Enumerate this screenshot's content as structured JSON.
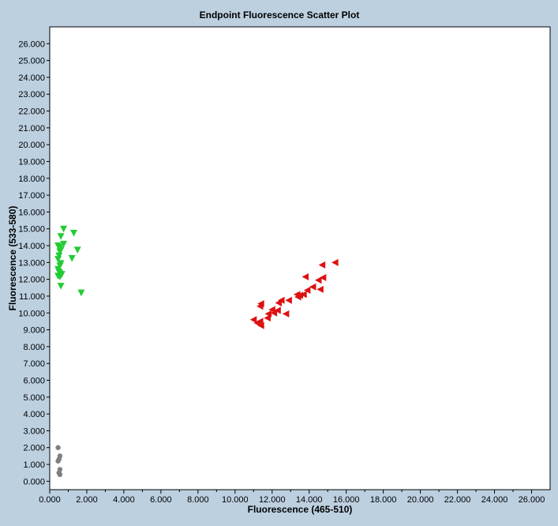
{
  "chart_data": {
    "type": "scatter",
    "title": "Endpoint Fluorescence Scatter Plot",
    "xlabel": "Fluorescence (465-510)",
    "ylabel": "Fluorescence (533-580)",
    "xlim": [
      0,
      27.0
    ],
    "ylim": [
      -0.5,
      27.0
    ],
    "grid": false,
    "x_ticks": [
      "0.000",
      "2.000",
      "4.000",
      "6.000",
      "8.000",
      "10.000",
      "12.000",
      "14.000",
      "16.000",
      "18.000",
      "20.000",
      "22.000",
      "24.000",
      "26.000"
    ],
    "y_ticks": [
      "0.000",
      "1.000",
      "2.000",
      "3.000",
      "4.000",
      "5.000",
      "6.000",
      "7.000",
      "8.000",
      "9.000",
      "10.000",
      "11.000",
      "12.000",
      "13.000",
      "14.000",
      "15.000",
      "16.000",
      "17.000",
      "18.000",
      "19.000",
      "20.000",
      "21.000",
      "22.000",
      "23.000",
      "24.000",
      "25.000",
      "26.000"
    ],
    "series": [
      {
        "marker": "triangle-down",
        "color": "#22cc33",
        "points": [
          [
            0.75,
            15.0
          ],
          [
            1.3,
            14.75
          ],
          [
            0.6,
            14.55
          ],
          [
            0.75,
            14.1
          ],
          [
            0.45,
            14.0
          ],
          [
            0.55,
            13.9
          ],
          [
            0.6,
            13.75
          ],
          [
            1.5,
            13.75
          ],
          [
            0.55,
            13.65
          ],
          [
            0.5,
            13.4
          ],
          [
            1.2,
            13.25
          ],
          [
            0.45,
            13.2
          ],
          [
            0.6,
            12.95
          ],
          [
            0.55,
            12.8
          ],
          [
            0.45,
            12.6
          ],
          [
            0.5,
            12.45
          ],
          [
            0.55,
            12.35
          ],
          [
            0.65,
            12.3
          ],
          [
            0.45,
            12.2
          ],
          [
            0.55,
            12.15
          ],
          [
            0.6,
            11.6
          ],
          [
            1.7,
            11.2
          ]
        ]
      },
      {
        "marker": "triangle-left",
        "color": "#dd1111",
        "points": [
          [
            15.4,
            13.0
          ],
          [
            14.7,
            12.85
          ],
          [
            14.75,
            12.1
          ],
          [
            14.5,
            11.95
          ],
          [
            13.8,
            12.15
          ],
          [
            14.6,
            11.4
          ],
          [
            14.2,
            11.55
          ],
          [
            13.9,
            11.35
          ],
          [
            13.7,
            11.1
          ],
          [
            13.5,
            11.05
          ],
          [
            13.35,
            11.1
          ],
          [
            13.4,
            10.95
          ],
          [
            12.9,
            10.75
          ],
          [
            12.5,
            10.75
          ],
          [
            12.35,
            10.6
          ],
          [
            11.4,
            10.55
          ],
          [
            11.35,
            10.4
          ],
          [
            12.3,
            10.15
          ],
          [
            12.0,
            10.2
          ],
          [
            12.1,
            10.0
          ],
          [
            11.8,
            9.95
          ],
          [
            12.75,
            9.95
          ],
          [
            11.75,
            9.7
          ],
          [
            11.0,
            9.6
          ],
          [
            11.35,
            9.5
          ],
          [
            11.2,
            9.4
          ],
          [
            11.4,
            9.25
          ]
        ]
      },
      {
        "marker": "circle",
        "color": "#7f7f7f",
        "points": [
          [
            0.45,
            2.0
          ],
          [
            0.55,
            1.5
          ],
          [
            0.5,
            1.3
          ],
          [
            0.45,
            1.2
          ],
          [
            0.55,
            0.7
          ],
          [
            0.5,
            0.5
          ],
          [
            0.55,
            0.4
          ]
        ]
      }
    ]
  }
}
